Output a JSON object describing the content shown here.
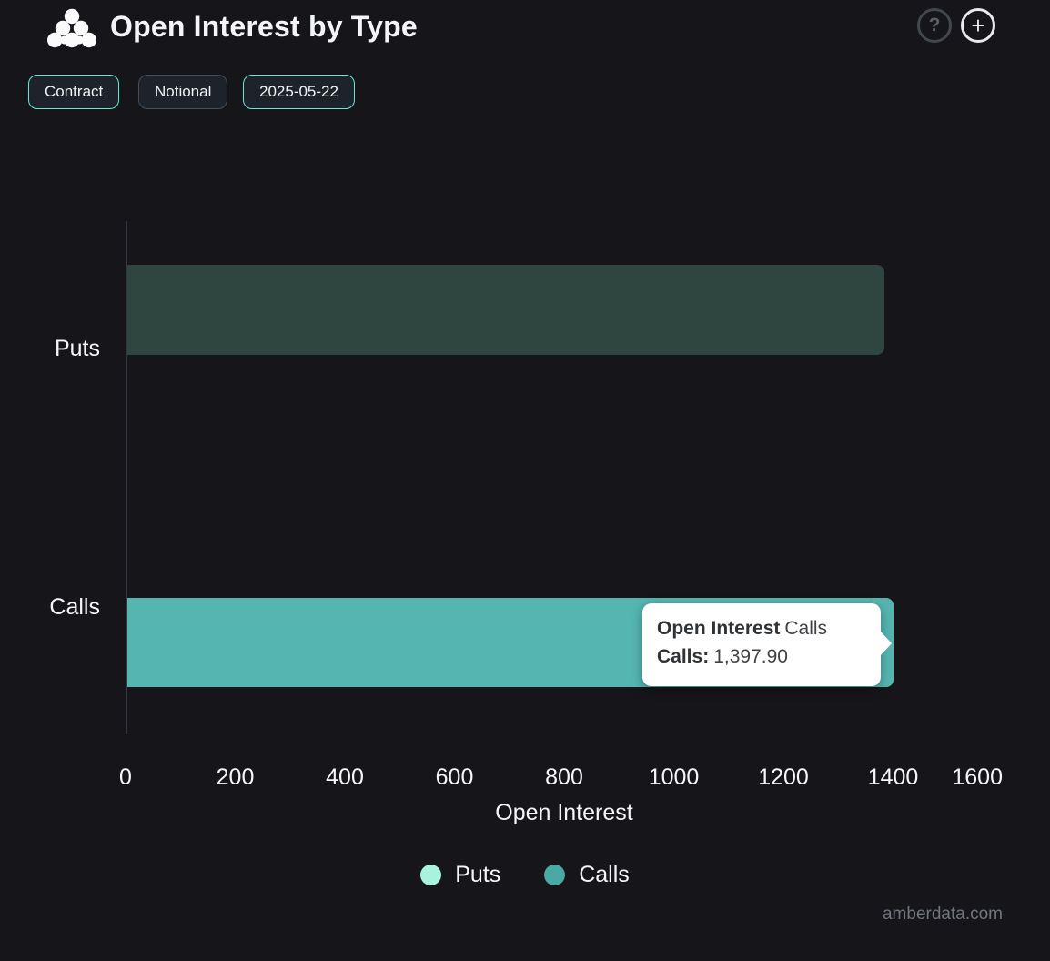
{
  "header": {
    "title": "Open Interest by Type",
    "help_icon_glyph": "?",
    "add_icon_glyph": "+"
  },
  "toolbar": {
    "buttons": [
      {
        "label": "Contract",
        "active": true
      },
      {
        "label": "Notional",
        "active": false
      },
      {
        "label": "2025-05-22",
        "active": true
      }
    ]
  },
  "chart_data": {
    "type": "bar",
    "orientation": "horizontal",
    "title": "Open Interest by Type",
    "categories": [
      "Puts",
      "Calls"
    ],
    "series": [
      {
        "name": "Puts",
        "category": "Puts",
        "value": 1381,
        "color_normal": "#a7f3dd",
        "color_rendered": "#2f4540",
        "state": "dimmed-by-hover"
      },
      {
        "name": "Calls",
        "category": "Calls",
        "value": 1397.9,
        "color_rendered": "#55b6b0",
        "state": "hovered"
      }
    ],
    "xlabel": "Open Interest",
    "ylabel": "",
    "x_ticks": [
      0,
      200,
      400,
      600,
      800,
      1000,
      1200,
      1400,
      1600
    ],
    "xlim": [
      0,
      1600
    ],
    "grid": false,
    "legend_position": "bottom"
  },
  "axis": {
    "tick_labels": [
      "0",
      "200",
      "400",
      "600",
      "800",
      "1000",
      "1200",
      "1400",
      "1600"
    ],
    "xlabel": "Open Interest"
  },
  "category_labels": {
    "puts": "Puts",
    "calls": "Calls"
  },
  "tooltip": {
    "title_bold": "Open Interest",
    "title_rest": "Calls",
    "row_label_bold": "Calls:",
    "row_value": "1,397.90"
  },
  "legend": {
    "items": [
      {
        "label": "Puts",
        "color": "#a7f3dd"
      },
      {
        "label": "Calls",
        "color": "#4aa9a2"
      }
    ]
  },
  "watermark": "amberdata.com",
  "colors": {
    "background": "#16161a",
    "accent_teal": "#5eead4",
    "bar_calls": "#55b6b0",
    "bar_puts_dimmed": "#2f4540",
    "legend_puts": "#a7f3dd",
    "legend_calls": "#4aa9a2",
    "tooltip_bg": "#ffffff",
    "tooltip_text": "#404346"
  }
}
